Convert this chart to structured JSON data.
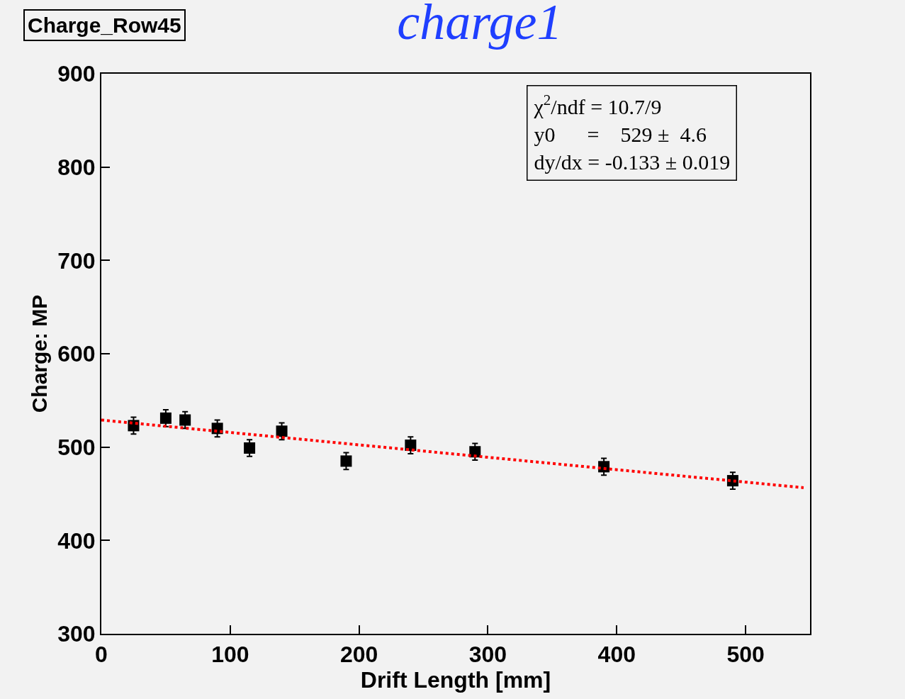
{
  "chart_data": {
    "type": "scatter",
    "title": "charge1",
    "subtitle": "Charge_Row45",
    "xlabel": "Drift Length [mm]",
    "ylabel": "Charge: MP",
    "x": [
      25,
      50,
      65,
      90,
      115,
      140,
      190,
      240,
      290,
      390,
      490
    ],
    "series": [
      {
        "color": "#000000",
        "marker": "square",
        "values": [
          523,
          531,
          529,
          520,
          499,
          517,
          485,
          502,
          495,
          479,
          464
        ],
        "errors": [
          9,
          9,
          9,
          9,
          9,
          9,
          9,
          9,
          9,
          9,
          9
        ]
      },
      {
        "type": "line",
        "color": "#ff0000",
        "line_style": "dotted",
        "marker": "none",
        "x": [
          0,
          545
        ],
        "values": [
          529,
          456.5
        ]
      }
    ],
    "xlim": [
      0,
      550
    ],
    "xticks": [
      0,
      100,
      200,
      300,
      400,
      500
    ],
    "ylim": [
      300,
      900
    ],
    "yticks": [
      300,
      400,
      500,
      600,
      700,
      800,
      900
    ],
    "annotations": [
      "χ$^{2}$/ndf = 10.7/9",
      "y0      =    529 ±  4.6",
      "dy/dx = -0.133 ± 0.019"
    ]
  }
}
